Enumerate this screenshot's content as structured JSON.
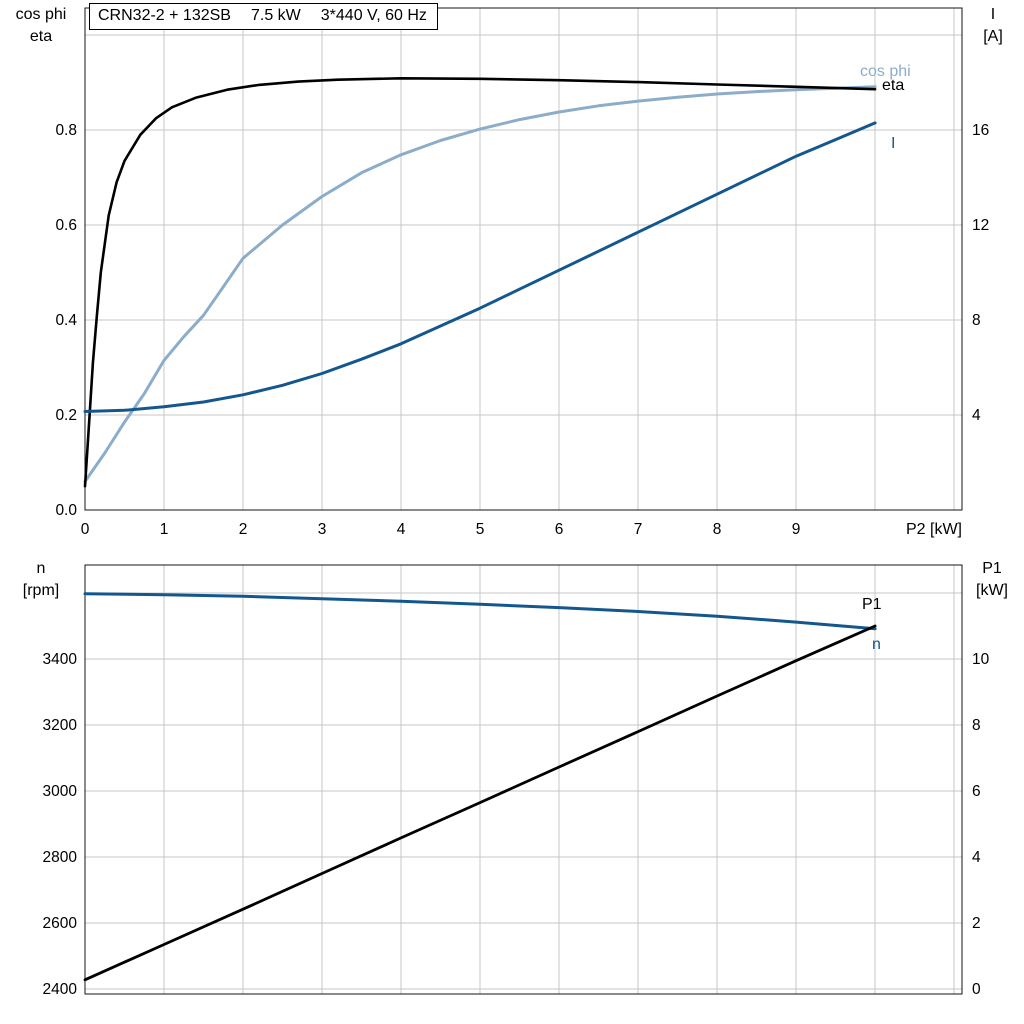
{
  "title_box": {
    "parts": [
      "CRN32-2 + 132SB",
      "7.5 kW",
      "3*440 V, 60 Hz"
    ]
  },
  "colors": {
    "dark_blue": "#14578f",
    "light_blue": "#8cadc9",
    "black": "#000000",
    "grid": "#c7c7c7"
  },
  "chart_data": [
    {
      "type": "line",
      "title": "Motor curves: efficiency, power factor and current vs shaft power",
      "xlim": [
        0,
        11.1
      ],
      "x_grid": [
        0,
        1,
        2,
        3,
        4,
        5,
        6,
        7,
        8,
        9,
        10,
        11
      ],
      "x_ticks": {
        "values": [
          0,
          1,
          2,
          3,
          4,
          5,
          6,
          7,
          8,
          9
        ],
        "labels": [
          "0",
          "1",
          "2",
          "3",
          "4",
          "5",
          "6",
          "7",
          "8",
          "9"
        ]
      },
      "x_axis_label": "P2 [kW]",
      "grid_on": true,
      "axes": {
        "left": {
          "label_lines": [
            "cos phi",
            "eta"
          ],
          "lim": [
            0,
            1.057
          ],
          "ticks": [
            0,
            0.2,
            0.4,
            0.6,
            0.8
          ],
          "tick_labels": [
            "0.0",
            "0.2",
            "0.4",
            "0.6",
            "0.8"
          ],
          "grid": [
            0.2,
            0.4,
            0.6,
            0.8,
            1.0
          ]
        },
        "right": {
          "label_lines": [
            "I",
            "[A]"
          ],
          "lim": [
            0,
            21.14
          ],
          "ticks": [
            4,
            8,
            12,
            16
          ],
          "tick_labels": [
            "4",
            "8",
            "12",
            "16"
          ],
          "grid": []
        }
      },
      "series": [
        {
          "name": "cos phi",
          "axis": "left",
          "color": "#8cadc9",
          "width": 3,
          "points": [
            [
              0,
              0.06
            ],
            [
              0.25,
              0.12
            ],
            [
              0.5,
              0.185
            ],
            [
              0.75,
              0.245
            ],
            [
              1,
              0.315
            ],
            [
              1.25,
              0.365
            ],
            [
              1.5,
              0.41
            ],
            [
              1.75,
              0.47
            ],
            [
              2,
              0.53
            ],
            [
              2.5,
              0.6
            ],
            [
              3,
              0.66
            ],
            [
              3.5,
              0.71
            ],
            [
              4,
              0.748
            ],
            [
              4.5,
              0.778
            ],
            [
              5,
              0.802
            ],
            [
              5.5,
              0.822
            ],
            [
              6,
              0.838
            ],
            [
              6.5,
              0.851
            ],
            [
              7,
              0.861
            ],
            [
              7.5,
              0.869
            ],
            [
              8,
              0.876
            ],
            [
              8.5,
              0.881
            ],
            [
              9,
              0.885
            ],
            [
              9.5,
              0.888
            ],
            [
              10,
              0.891
            ]
          ]
        },
        {
          "name": "eta",
          "axis": "left",
          "color": "#000000",
          "width": 2.6,
          "points": [
            [
              0,
              0.05
            ],
            [
              0.05,
              0.18
            ],
            [
              0.1,
              0.31
            ],
            [
              0.15,
              0.41
            ],
            [
              0.2,
              0.5
            ],
            [
              0.3,
              0.62
            ],
            [
              0.4,
              0.69
            ],
            [
              0.5,
              0.735
            ],
            [
              0.7,
              0.79
            ],
            [
              0.9,
              0.825
            ],
            [
              1.1,
              0.848
            ],
            [
              1.4,
              0.868
            ],
            [
              1.8,
              0.885
            ],
            [
              2.2,
              0.895
            ],
            [
              2.7,
              0.902
            ],
            [
              3.2,
              0.906
            ],
            [
              4,
              0.909
            ],
            [
              5,
              0.908
            ],
            [
              6,
              0.905
            ],
            [
              7,
              0.901
            ],
            [
              8,
              0.896
            ],
            [
              9,
              0.891
            ],
            [
              10,
              0.886
            ]
          ]
        },
        {
          "name": "I",
          "axis": "right",
          "color": "#14578f",
          "width": 3,
          "points": [
            [
              0,
              4.15
            ],
            [
              0.5,
              4.2
            ],
            [
              1,
              4.35
            ],
            [
              1.5,
              4.55
            ],
            [
              2,
              4.85
            ],
            [
              2.5,
              5.25
            ],
            [
              3,
              5.75
            ],
            [
              3.5,
              6.35
            ],
            [
              4,
              7.0
            ],
            [
              4.5,
              7.75
            ],
            [
              5,
              8.5
            ],
            [
              5.5,
              9.3
            ],
            [
              6,
              10.1
            ],
            [
              6.5,
              10.9
            ],
            [
              7,
              11.7
            ],
            [
              7.5,
              12.5
            ],
            [
              8,
              13.3
            ],
            [
              8.5,
              14.1
            ],
            [
              9,
              14.9
            ],
            [
              9.5,
              15.6
            ],
            [
              10,
              16.3
            ]
          ]
        }
      ]
    },
    {
      "type": "line",
      "title": "Speed and input power vs shaft power",
      "xlim": [
        0,
        11.1
      ],
      "x_grid": [
        0,
        1,
        2,
        3,
        4,
        5,
        6,
        7,
        8,
        9,
        10,
        11
      ],
      "x_ticks": {
        "values": [],
        "labels": []
      },
      "x_axis_label": "",
      "grid_on": true,
      "axes": {
        "left": {
          "label_lines": [
            "n",
            "[rpm]"
          ],
          "lim": [
            2385,
            3685
          ],
          "ticks": [
            2400,
            2600,
            2800,
            3000,
            3200,
            3400
          ],
          "tick_labels": [
            "2400",
            "2600",
            "2800",
            "3000",
            "3200",
            "3400"
          ],
          "grid": [
            2400,
            2600,
            2800,
            3000,
            3200,
            3400,
            3600
          ]
        },
        "right": {
          "label_lines": [
            "P1",
            "[kW]"
          ],
          "lim": [
            -0.15,
            12.85
          ],
          "ticks": [
            0,
            2,
            4,
            6,
            8,
            10
          ],
          "tick_labels": [
            "0",
            "2",
            "4",
            "6",
            "8",
            "10"
          ],
          "grid": []
        }
      },
      "series": [
        {
          "name": "n",
          "axis": "left",
          "color": "#14578f",
          "width": 3,
          "points": [
            [
              0,
              3598
            ],
            [
              1,
              3595
            ],
            [
              2,
              3590
            ],
            [
              3,
              3583
            ],
            [
              4,
              3575
            ],
            [
              5,
              3566
            ],
            [
              6,
              3556
            ],
            [
              7,
              3544
            ],
            [
              8,
              3530
            ],
            [
              9,
              3512
            ],
            [
              10,
              3492
            ]
          ]
        },
        {
          "name": "P1",
          "axis": "right",
          "color": "#000000",
          "width": 2.8,
          "points": [
            [
              0,
              0.28
            ],
            [
              1,
              1.35
            ],
            [
              2,
              2.42
            ],
            [
              3,
              3.5
            ],
            [
              4,
              4.58
            ],
            [
              5,
              5.65
            ],
            [
              6,
              6.73
            ],
            [
              7,
              7.8
            ],
            [
              8,
              8.88
            ],
            [
              9,
              9.95
            ],
            [
              10,
              11.0
            ]
          ]
        }
      ]
    },
    {
      "note": "curve_end_labels",
      "labels": [
        "cos phi",
        "eta",
        "I",
        "P1",
        "n"
      ]
    }
  ]
}
